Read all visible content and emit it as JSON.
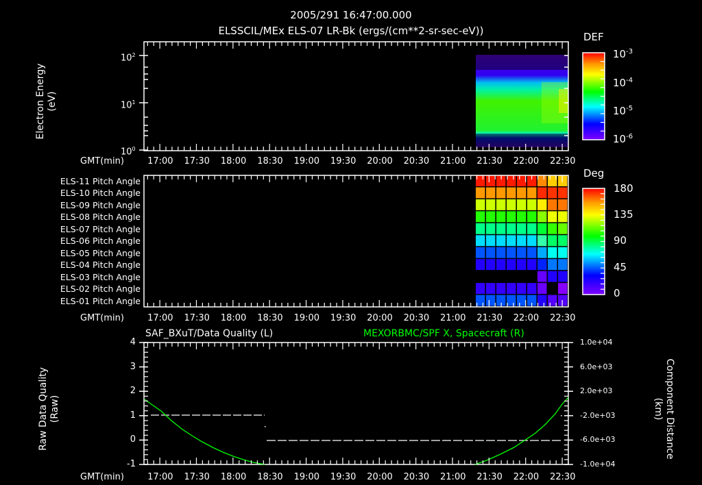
{
  "header": {
    "timestamp": "2005/291 16:47:00.000",
    "subtitle": "ELSSCIL/MEx ELS-07 LR-Bk  (ergs/(cm**2-sr-sec-eV))"
  },
  "xaxis": {
    "label": "GMT(min)",
    "ticks": [
      "17:00",
      "17:30",
      "18:00",
      "18:30",
      "19:00",
      "19:30",
      "20:00",
      "20:30",
      "21:00",
      "21:30",
      "22:00",
      "22:30"
    ]
  },
  "panel1": {
    "ylabel_line1": "Electron Energy",
    "ylabel_line2": "(eV)",
    "yticks": [
      {
        "base": "10",
        "exp": "2"
      },
      {
        "base": "10",
        "exp": "1"
      },
      {
        "base": "10",
        "exp": "0"
      }
    ],
    "colorbar": {
      "title": "DEF",
      "labels": [
        {
          "base": "10",
          "exp": "-3"
        },
        {
          "base": "10",
          "exp": "-4"
        },
        {
          "base": "10",
          "exp": "-5"
        },
        {
          "base": "10",
          "exp": "-6"
        }
      ]
    }
  },
  "panel2": {
    "rows": [
      "ELS-11 Pitch Angle",
      "ELS-10 Pitch Angle",
      "ELS-09 Pitch Angle",
      "ELS-08 Pitch Angle",
      "ELS-07 Pitch Angle",
      "ELS-06 Pitch Angle",
      "ELS-05 Pitch Angle",
      "ELS-04 Pitch Angle",
      "ELS-03 Pitch Angle",
      "ELS-02 Pitch Angle",
      "ELS-01 Pitch Angle"
    ],
    "colorbar": {
      "title": "Deg",
      "labels": [
        "180",
        "135",
        "90",
        "45",
        "0"
      ]
    }
  },
  "panel3": {
    "left_title": "SAF_BXuT/Data Quality (L)",
    "right_title": "MEXORBMC/SPF X, Spacecraft (R)",
    "ylabel_left_line1": "Raw Data Quality",
    "ylabel_left_line2": "(Raw)",
    "ylabel_right_line1": "Component Distance",
    "ylabel_right_line2": "(km)",
    "yticks_left": [
      "4",
      "3",
      "2",
      "1",
      "0",
      "-1"
    ],
    "yticks_right": [
      "1.0e+04",
      "6.0e+03",
      "2.0e+03",
      "-2.0e+03",
      "-6.0e+03",
      "-1.0e+04"
    ]
  },
  "colors": {
    "background": "#000000",
    "axes": "#ffffff",
    "spacecraft_trace": "#00ff00",
    "quality_trace": "#ffffff"
  },
  "chart_data": [
    {
      "type": "heatmap",
      "title": "ELSSCIL/MEx ELS-07 LR-Bk (ergs/(cm**2-sr-sec-eV))",
      "xlabel": "GMT(min)",
      "ylabel": "Electron Energy (eV)",
      "yscale": "log",
      "ylim": [
        1,
        150
      ],
      "x_ticks": [
        "17:00",
        "17:30",
        "18:00",
        "18:30",
        "19:00",
        "19:30",
        "20:00",
        "20:30",
        "21:00",
        "21:30",
        "22:00",
        "22:30"
      ],
      "xlim": [
        "16:47",
        "22:35"
      ],
      "data_start": "21:17",
      "colorbar": {
        "label": "DEF",
        "scale": "log",
        "range": [
          1e-06,
          0.001
        ]
      },
      "description": "Data only from ~21:17 onward; peak flux (~1e-4 DEF, green/yellow) at ~3-20 eV, sparse low flux (purple) above ~30 eV and below ~3 eV"
    },
    {
      "type": "heatmap",
      "title": "Pitch Angle",
      "xlabel": "GMT(min)",
      "categories": [
        "ELS-11",
        "ELS-10",
        "ELS-09",
        "ELS-08",
        "ELS-07",
        "ELS-06",
        "ELS-05",
        "ELS-04",
        "ELS-03",
        "ELS-02",
        "ELS-01"
      ],
      "colorbar": {
        "label": "Deg",
        "range": [
          0,
          180
        ],
        "ticks": [
          0,
          45,
          90,
          135,
          180
        ]
      },
      "approx_values_deg": {
        "ELS-11": 175,
        "ELS-10": 158,
        "ELS-09": 140,
        "ELS-08": 115,
        "ELS-07": 98,
        "ELS-06": 80,
        "ELS-05": 60,
        "ELS-04": 40,
        "ELS-03": 35,
        "ELS-02": 30,
        "ELS-01": 50
      },
      "data_start": "21:17"
    },
    {
      "type": "line",
      "title": "SAF_BXuT/Data Quality (L) / MEXORBMC/SPF X, Spacecraft (R)",
      "xlabel": "GMT(min)",
      "series": [
        {
          "name": "SAF_BXuT/Data Quality",
          "axis": "left",
          "ylim": [
            -1,
            4
          ],
          "x": [
            "16:52",
            "18:27",
            "18:28",
            "22:33"
          ],
          "y": [
            1,
            1,
            0,
            0
          ]
        },
        {
          "name": "MEXORBMC/SPF X, Spacecraft",
          "axis": "right",
          "ylim": [
            -10000,
            10000
          ],
          "x": [
            "16:47",
            "17:00",
            "17:30",
            "18:00",
            "18:30",
            "21:17",
            "21:30",
            "22:00",
            "22:35"
          ],
          "y": [
            2600,
            1000,
            -3200,
            -7000,
            -10000,
            -10000,
            -8800,
            -5600,
            2400
          ]
        }
      ]
    }
  ]
}
